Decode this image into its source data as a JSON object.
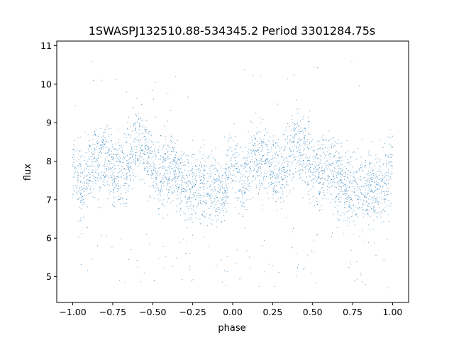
{
  "chart_data": {
    "type": "scatter",
    "title": "1SWASPJ132510.88-534345.2 Period 3301284.75s",
    "xlabel": "phase",
    "ylabel": "flux",
    "xlim": [
      -1.1,
      1.1
    ],
    "ylim": [
      4.33,
      11.12
    ],
    "x_ticks": [
      -1.0,
      -0.75,
      -0.5,
      -0.25,
      0.0,
      0.25,
      0.5,
      0.75,
      1.0
    ],
    "x_tick_labels": [
      "−1.00",
      "−0.75",
      "−0.50",
      "−0.25",
      "0.00",
      "0.25",
      "0.50",
      "0.75",
      "1.00"
    ],
    "y_ticks": [
      5,
      6,
      7,
      8,
      9,
      10,
      11
    ],
    "y_tick_labels": [
      "5",
      "6",
      "7",
      "8",
      "9",
      "10",
      "11"
    ],
    "grid": false,
    "legend": "none",
    "marker_color": "#1f77b4",
    "phase_range": [
      -1.0,
      1.0
    ],
    "typical_flux_range": [
      6.8,
      9.0
    ],
    "flux_extremes": [
      4.7,
      10.6
    ]
  }
}
